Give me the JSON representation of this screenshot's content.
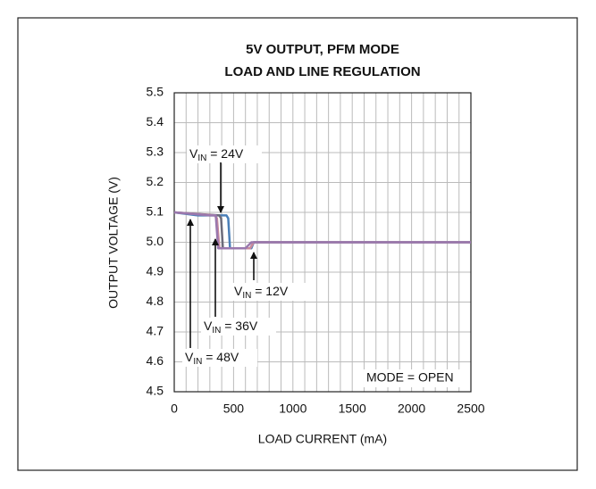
{
  "chart_data": {
    "type": "line",
    "title": [
      "5V OUTPUT, PFM MODE",
      "LOAD AND LINE REGULATION"
    ],
    "xlabel": "LOAD CURRENT (mA)",
    "ylabel": "OUTPUT VOLTAGE (V)",
    "xlim": [
      0,
      2500
    ],
    "ylim": [
      4.5,
      5.5
    ],
    "xticks": [
      0,
      500,
      1000,
      1500,
      2000,
      2500
    ],
    "yticks": [
      {
        "value": 4.5,
        "label": "4.5"
      },
      {
        "value": 4.6,
        "label": "4.6"
      },
      {
        "value": 4.7,
        "label": "4.7"
      },
      {
        "value": 4.8,
        "label": "4.8"
      },
      {
        "value": 4.9,
        "label": "4.9"
      },
      {
        "value": 5.0,
        "label": "5.0"
      },
      {
        "value": 5.1,
        "label": "5.1"
      },
      {
        "value": 5.2,
        "label": "5.2"
      },
      {
        "value": 5.3,
        "label": "5.3"
      },
      {
        "value": 5.4,
        "label": "5.4"
      },
      {
        "value": 5.5,
        "label": "5.5"
      }
    ],
    "xminorticks": [
      100,
      200,
      300,
      400,
      600,
      700,
      800,
      900,
      1100,
      1200,
      1300,
      1400,
      1600,
      1700,
      1800,
      1900,
      2100,
      2200,
      2300,
      2400
    ],
    "grid": true,
    "series": [
      {
        "name": "12V",
        "color": "#4a7fb8",
        "x": [
          0,
          200,
          440,
          455,
          470,
          650,
          670,
          700,
          2500
        ],
        "values": [
          5.1,
          5.09,
          5.09,
          5.08,
          4.98,
          4.98,
          5.0,
          5.0,
          5.0
        ]
      },
      {
        "name": "24V",
        "color": "#6b6b7a",
        "x": [
          0,
          380,
          395,
          410,
          640,
          670,
          2500
        ],
        "values": [
          5.1,
          5.09,
          5.08,
          4.98,
          4.98,
          5.0,
          5.0
        ]
      },
      {
        "name": "36V",
        "color": "#c98a9c",
        "x": [
          0,
          340,
          360,
          380,
          640,
          670,
          2500
        ],
        "values": [
          5.1,
          5.09,
          5.08,
          4.98,
          4.98,
          5.0,
          5.0
        ]
      },
      {
        "name": "48V",
        "color": "#9a78ae",
        "x": [
          0,
          300,
          350,
          370,
          600,
          650,
          2500
        ],
        "values": [
          5.1,
          5.09,
          5.09,
          4.98,
          4.98,
          5.0,
          5.0
        ]
      }
    ],
    "annotations": [
      {
        "main": "V",
        "sub": "IN",
        "rest": " = 24V"
      },
      {
        "main": "V",
        "sub": "IN",
        "rest": " = 12V"
      },
      {
        "main": "V",
        "sub": "IN",
        "rest": " = 36V"
      },
      {
        "main": "V",
        "sub": "IN",
        "rest": " = 48V"
      },
      {
        "text": "MODE = OPEN"
      }
    ]
  }
}
